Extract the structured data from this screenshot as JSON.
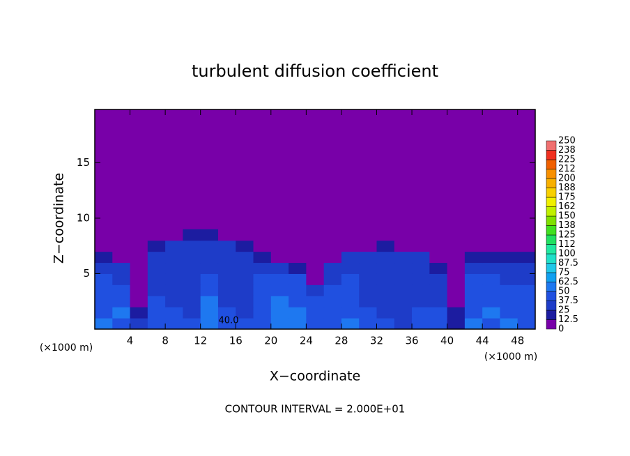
{
  "chart_data": {
    "type": "heatmap",
    "title": "turbulent diffusion coefficient",
    "x_label": "X−coordinate",
    "y_label": "Z−coordinate",
    "x_unit": "(×1000 m)",
    "footer": "CONTOUR INTERVAL = 2.000E+01",
    "annotation": "40.0",
    "xlim": [
      0,
      50
    ],
    "ylim": [
      0,
      19.8
    ],
    "xticks": [
      4,
      8,
      12,
      16,
      20,
      24,
      28,
      32,
      36,
      40,
      44,
      48
    ],
    "yticks": [
      5,
      10,
      15
    ],
    "x": [
      1,
      3,
      5,
      7,
      9,
      11,
      13,
      15,
      17,
      19,
      21,
      23,
      25,
      27,
      29,
      31,
      33,
      35,
      37,
      39,
      41,
      43,
      45,
      47,
      49
    ],
    "y": [
      0.5,
      1.5,
      2.5,
      3.5,
      4.5,
      5.5,
      6.5,
      7.5,
      8.5
    ],
    "z": [
      [
        50,
        40,
        30,
        45,
        40,
        38,
        60,
        40,
        38,
        45,
        50,
        55,
        40,
        45,
        50,
        40,
        38,
        35,
        40,
        40,
        20,
        50,
        45,
        50,
        45
      ],
      [
        45,
        50,
        20,
        40,
        38,
        35,
        55,
        38,
        36,
        40,
        55,
        50,
        45,
        40,
        45,
        38,
        36,
        35,
        38,
        40,
        15,
        45,
        50,
        45,
        40
      ],
      [
        40,
        45,
        10,
        38,
        35,
        35,
        50,
        36,
        35,
        38,
        50,
        45,
        40,
        40,
        42,
        36,
        35,
        33,
        36,
        35,
        10,
        40,
        45,
        40,
        40
      ],
      [
        45,
        40,
        5,
        36,
        35,
        35,
        45,
        35,
        34,
        45,
        45,
        40,
        30,
        38,
        40,
        35,
        34,
        32,
        35,
        30,
        8,
        45,
        40,
        38,
        38
      ],
      [
        40,
        35,
        5,
        35,
        34,
        34,
        40,
        34,
        33,
        40,
        40,
        38,
        8,
        35,
        38,
        34,
        33,
        32,
        34,
        30,
        5,
        45,
        40,
        35,
        35
      ],
      [
        30,
        25,
        5,
        33,
        33,
        33,
        35,
        33,
        32,
        35,
        35,
        20,
        5,
        30,
        35,
        33,
        32,
        30,
        32,
        15,
        5,
        35,
        35,
        30,
        30
      ],
      [
        20,
        5,
        5,
        30,
        30,
        32,
        33,
        30,
        30,
        15,
        10,
        5,
        5,
        10,
        25,
        30,
        30,
        28,
        25,
        5,
        5,
        15,
        20,
        20,
        20
      ],
      [
        5,
        5,
        5,
        15,
        25,
        28,
        30,
        25,
        15,
        5,
        5,
        5,
        5,
        5,
        5,
        10,
        15,
        10,
        5,
        5,
        5,
        5,
        5,
        5,
        5
      ],
      [
        5,
        5,
        5,
        5,
        10,
        15,
        15,
        10,
        5,
        5,
        5,
        5,
        5,
        5,
        5,
        5,
        5,
        5,
        5,
        5,
        5,
        5,
        5,
        5,
        5
      ]
    ],
    "colorbar": {
      "ticks": [
        0,
        12.5,
        25,
        37.5,
        50,
        62.5,
        75,
        87.5,
        100,
        {
          "value": 112.5,
          "label": "112"
        },
        125,
        {
          "value": 137.5,
          "label": "138"
        },
        150,
        {
          "value": 162.5,
          "label": "162"
        },
        175,
        {
          "value": 187.5,
          "label": "188"
        },
        200,
        {
          "value": 212.5,
          "label": "212"
        },
        225,
        {
          "value": 237.5,
          "label": "238"
        },
        250
      ],
      "colors": [
        "#7800a8",
        "#1c1ca0",
        "#1e3cc8",
        "#2050e0",
        "#1e78f0",
        "#10a0f0",
        "#20c8e8",
        "#20e0c8",
        "#20e8a0",
        "#20e060",
        "#40e020",
        "#80e000",
        "#c0f000",
        "#f0f000",
        "#f8d000",
        "#f8b000",
        "#f89000",
        "#f06000",
        "#f03020",
        "#f07070"
      ]
    }
  }
}
